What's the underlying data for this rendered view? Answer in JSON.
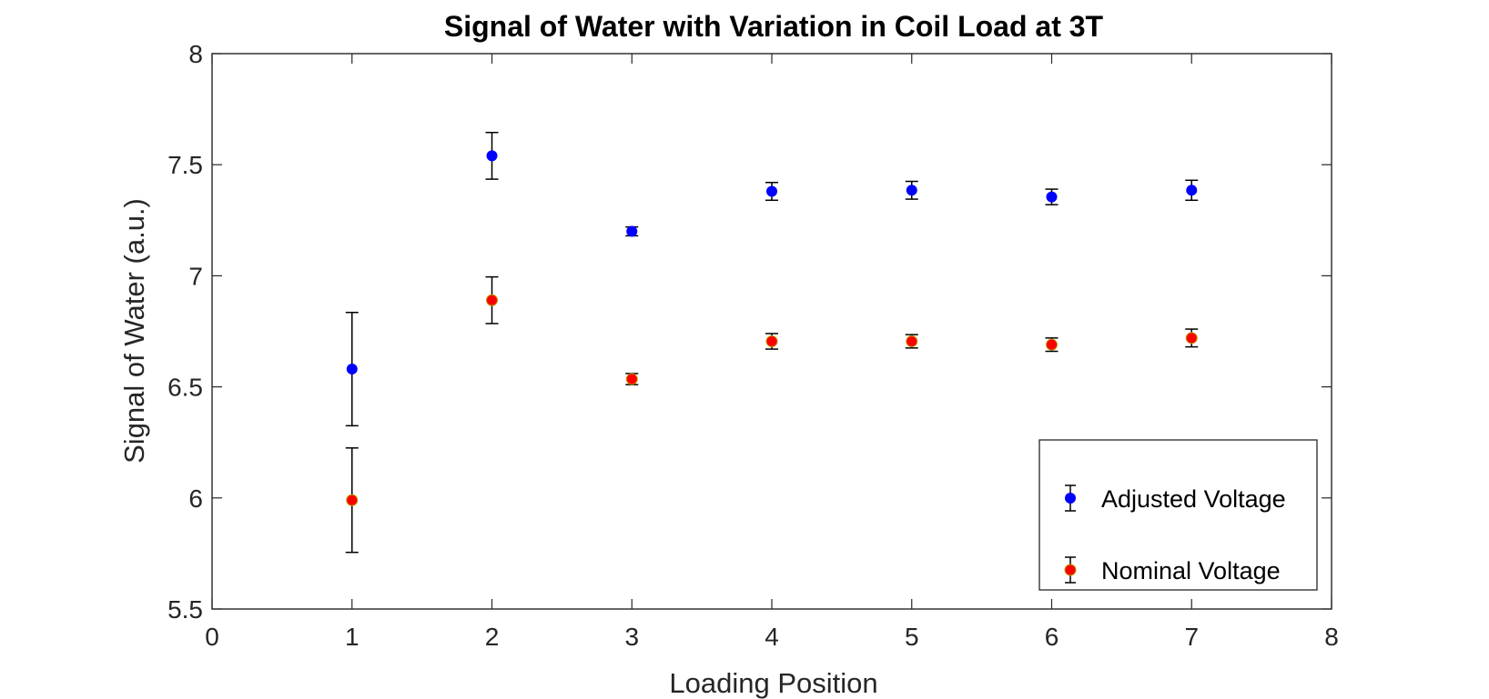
{
  "chart_data": {
    "type": "scatter",
    "title": "Signal of Water with Variation in Coil Load at 3T",
    "xlabel": "Loading Position",
    "ylabel": "Signal of Water (a.u.)",
    "xlim": [
      0,
      8
    ],
    "ylim": [
      5.5,
      8
    ],
    "xticks": [
      0,
      1,
      2,
      3,
      4,
      5,
      6,
      7,
      8
    ],
    "yticks": [
      5.5,
      6,
      6.5,
      7,
      7.5,
      8
    ],
    "xtick_labels": [
      "0",
      "1",
      "2",
      "3",
      "4",
      "5",
      "6",
      "7",
      "8"
    ],
    "ytick_labels": [
      "5.5",
      "6",
      "6.5",
      "7",
      "7.5",
      "8"
    ],
    "grid": false,
    "legend_position": "bottom-right",
    "series": [
      {
        "name": "Adjusted Voltage",
        "color": "#0000ff",
        "x": [
          1,
          2,
          3,
          4,
          5,
          6,
          7
        ],
        "y": [
          6.58,
          7.54,
          7.2,
          7.38,
          7.385,
          7.355,
          7.385
        ],
        "err": [
          0.255,
          0.105,
          0.02,
          0.04,
          0.04,
          0.035,
          0.045
        ]
      },
      {
        "name": "Nominal Voltage",
        "color": "#ff0000",
        "x": [
          1,
          2,
          3,
          4,
          5,
          6,
          7
        ],
        "y": [
          5.99,
          6.89,
          6.535,
          6.705,
          6.705,
          6.69,
          6.72
        ],
        "err": [
          0.235,
          0.105,
          0.025,
          0.035,
          0.03,
          0.03,
          0.04
        ]
      }
    ]
  }
}
